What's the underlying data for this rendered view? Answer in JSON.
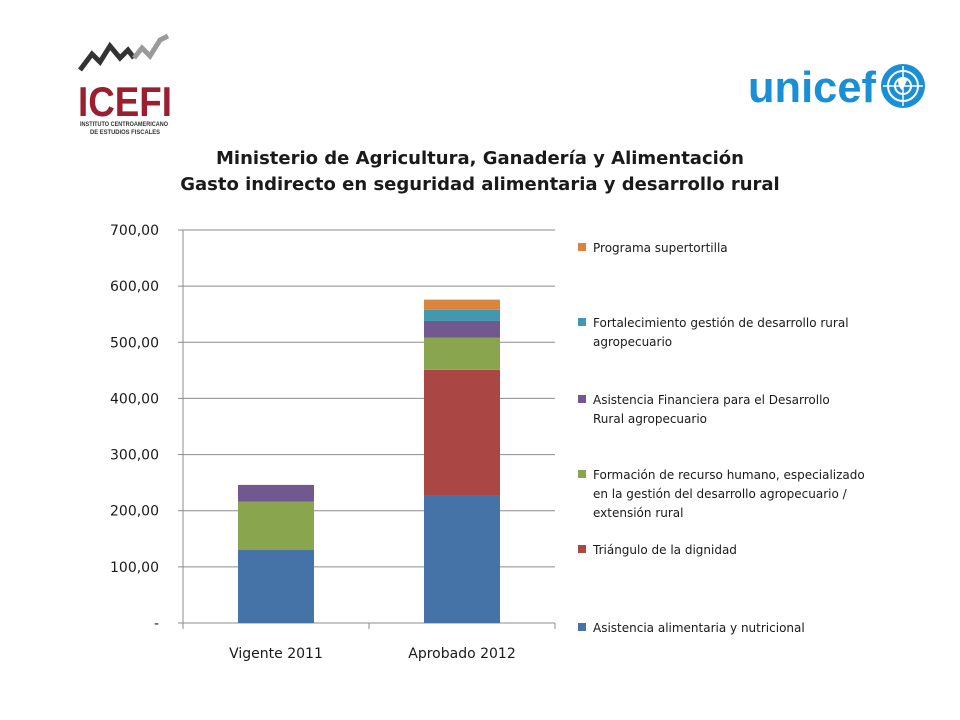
{
  "logos": {
    "icefi": {
      "text": "ICEFI",
      "subtitle_line1": "INSTITUTO CENTROAMERICANO",
      "subtitle_line2": "DE ESTUDIOS FISCALES",
      "color": "#9b1f2e"
    },
    "unicef": {
      "text": "unicef",
      "color": "#1a8fd6"
    }
  },
  "chart_data": {
    "type": "bar",
    "stacked": true,
    "title": "Ministerio de Agricultura, Ganadería y Alimentación",
    "subtitle": "Gasto indirecto en seguridad alimentaria y desarrollo rural",
    "categories": [
      "Vigente 2011",
      "Aprobado 2012"
    ],
    "ylim": [
      0,
      700
    ],
    "yticks": [
      0,
      100,
      200,
      300,
      400,
      500,
      600,
      700
    ],
    "ytick_labels": [
      "-",
      "100,00",
      "200,00",
      "300,00",
      "400,00",
      "500,00",
      "600,00",
      "700,00"
    ],
    "grid": true,
    "legend_position": "right",
    "series": [
      {
        "name": "Asistencia alimentaria y nutricional",
        "color": "#4572a7",
        "values": [
          130,
          227
        ]
      },
      {
        "name": "Triángulo de la dignidad",
        "color": "#aa4643",
        "values": [
          0,
          224
        ]
      },
      {
        "name": "Formación de recurso humano, especializado en la gestión del desarrollo agropecuario / extensión rural",
        "color": "#89a54e",
        "values": [
          86,
          57
        ]
      },
      {
        "name": "Asistencia Financiera para el Desarrollo Rural agropecuario",
        "color": "#71588f",
        "values": [
          30,
          30
        ]
      },
      {
        "name": "Fortalecimiento gestión de desarrollo rural agropecuario",
        "color": "#4198af",
        "values": [
          0,
          20
        ]
      },
      {
        "name": "Programa supertortilla",
        "color": "#db843d",
        "values": [
          0,
          18
        ]
      }
    ]
  }
}
